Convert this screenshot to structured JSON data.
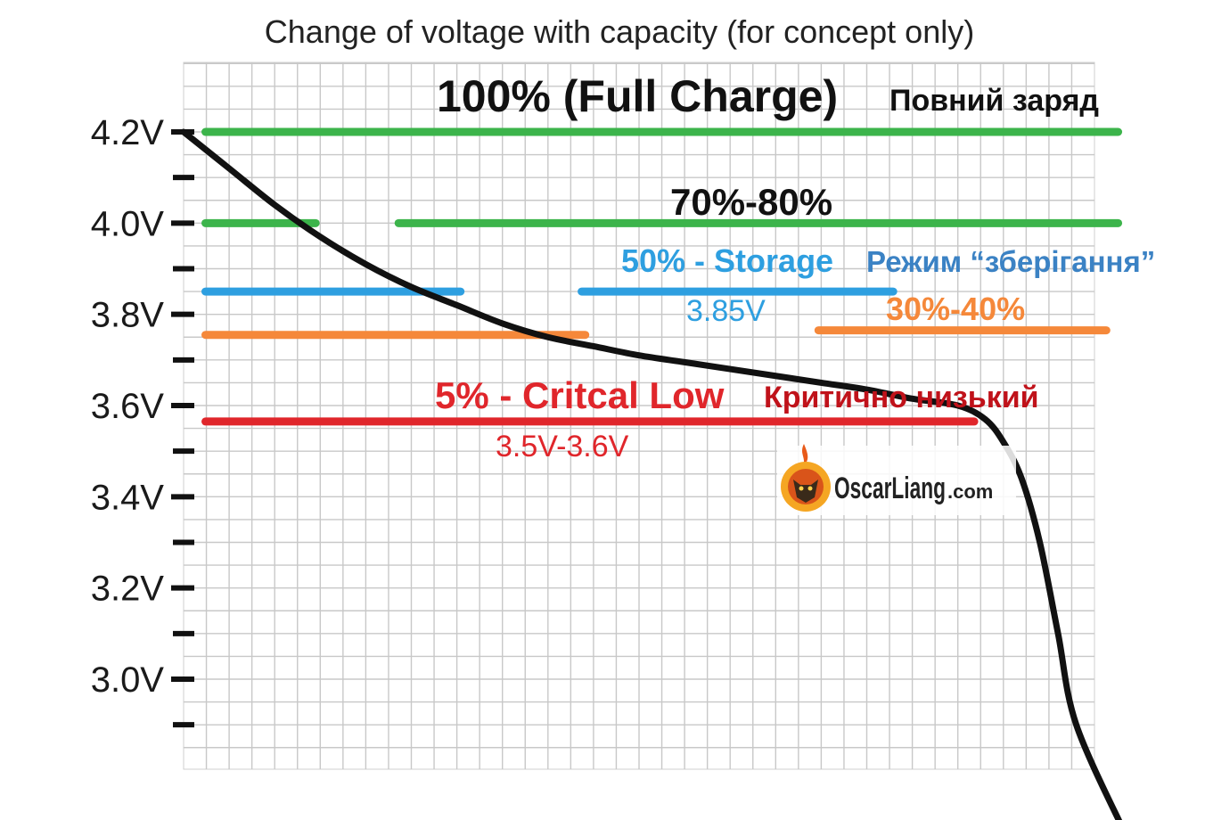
{
  "chart_data": {
    "type": "line",
    "title": "Change of voltage with capacity (for concept only)",
    "xlabel": "",
    "ylabel": "",
    "y_ticks": [
      "4.2V",
      "4.0V",
      "3.8V",
      "3.6V",
      "3.4V",
      "3.2V",
      "3.0V"
    ],
    "y_tick_values": [
      4.2,
      4.0,
      3.8,
      3.6,
      3.4,
      3.2,
      3.0
    ],
    "ylim": [
      2.86,
      4.26
    ],
    "xlim": [
      0,
      100
    ],
    "grid": true,
    "series": [
      {
        "color": "#111111",
        "points": [
          [
            0,
            4.2
          ],
          [
            5,
            4.12
          ],
          [
            10,
            4.04
          ],
          [
            15,
            3.97
          ],
          [
            20,
            3.91
          ],
          [
            25,
            3.86
          ],
          [
            30,
            3.82
          ],
          [
            35,
            3.78
          ],
          [
            40,
            3.75
          ],
          [
            45,
            3.73
          ],
          [
            50,
            3.71
          ],
          [
            55,
            3.695
          ],
          [
            60,
            3.68
          ],
          [
            65,
            3.665
          ],
          [
            70,
            3.65
          ],
          [
            75,
            3.635
          ],
          [
            80,
            3.615
          ],
          [
            85,
            3.6
          ],
          [
            88,
            3.57
          ],
          [
            90,
            3.52
          ],
          [
            92,
            3.44
          ],
          [
            94,
            3.3
          ],
          [
            96,
            3.1
          ],
          [
            98,
            2.9
          ],
          [
            103.4,
            2.66
          ]
        ]
      }
    ],
    "reference_lines": [
      {
        "color": "#3cb44b",
        "y": 4.2,
        "segments": [
          [
            2.4,
            102.6
          ]
        ]
      },
      {
        "color": "#3cb44b",
        "y": 4.0,
        "segments": [
          [
            2.4,
            14.5
          ],
          [
            23.6,
            102.6
          ]
        ]
      },
      {
        "color": "#2e9fe0",
        "y": 3.85,
        "segments": [
          [
            2.4,
            30.4
          ],
          [
            43.7,
            77.9
          ]
        ]
      },
      {
        "color": "#f5883a",
        "y": 3.755,
        "segments": [
          [
            2.4,
            44.1
          ]
        ]
      },
      {
        "color": "#f5883a",
        "y": 3.765,
        "segments": [
          [
            69.7,
            101.3
          ]
        ]
      },
      {
        "color": "#e0262b",
        "y": 3.565,
        "segments": [
          [
            2.4,
            86.8
          ]
        ]
      }
    ],
    "annotations": [
      {
        "text": "100% (Full Charge)",
        "color": "#111111"
      },
      {
        "text": "Повний заряд",
        "color": "#111111"
      },
      {
        "text": "70%-80%",
        "color": "#111111"
      },
      {
        "text": "50% - Storage",
        "color": "#2e9fe0"
      },
      {
        "text": "Режим “зберігання”",
        "color": "#3b82c4"
      },
      {
        "text": "3.85V",
        "color": "#2e9fe0"
      },
      {
        "text": "30%-40%",
        "color": "#f5883a"
      },
      {
        "text": "5% - Critcal Low",
        "color": "#e0262b"
      },
      {
        "text": "Критично низький",
        "color": "#c0121a"
      },
      {
        "text": "3.5V-3.6V",
        "color": "#e0262b"
      }
    ],
    "watermark": {
      "text": "OscarLiang",
      "suffix": ".com"
    }
  }
}
